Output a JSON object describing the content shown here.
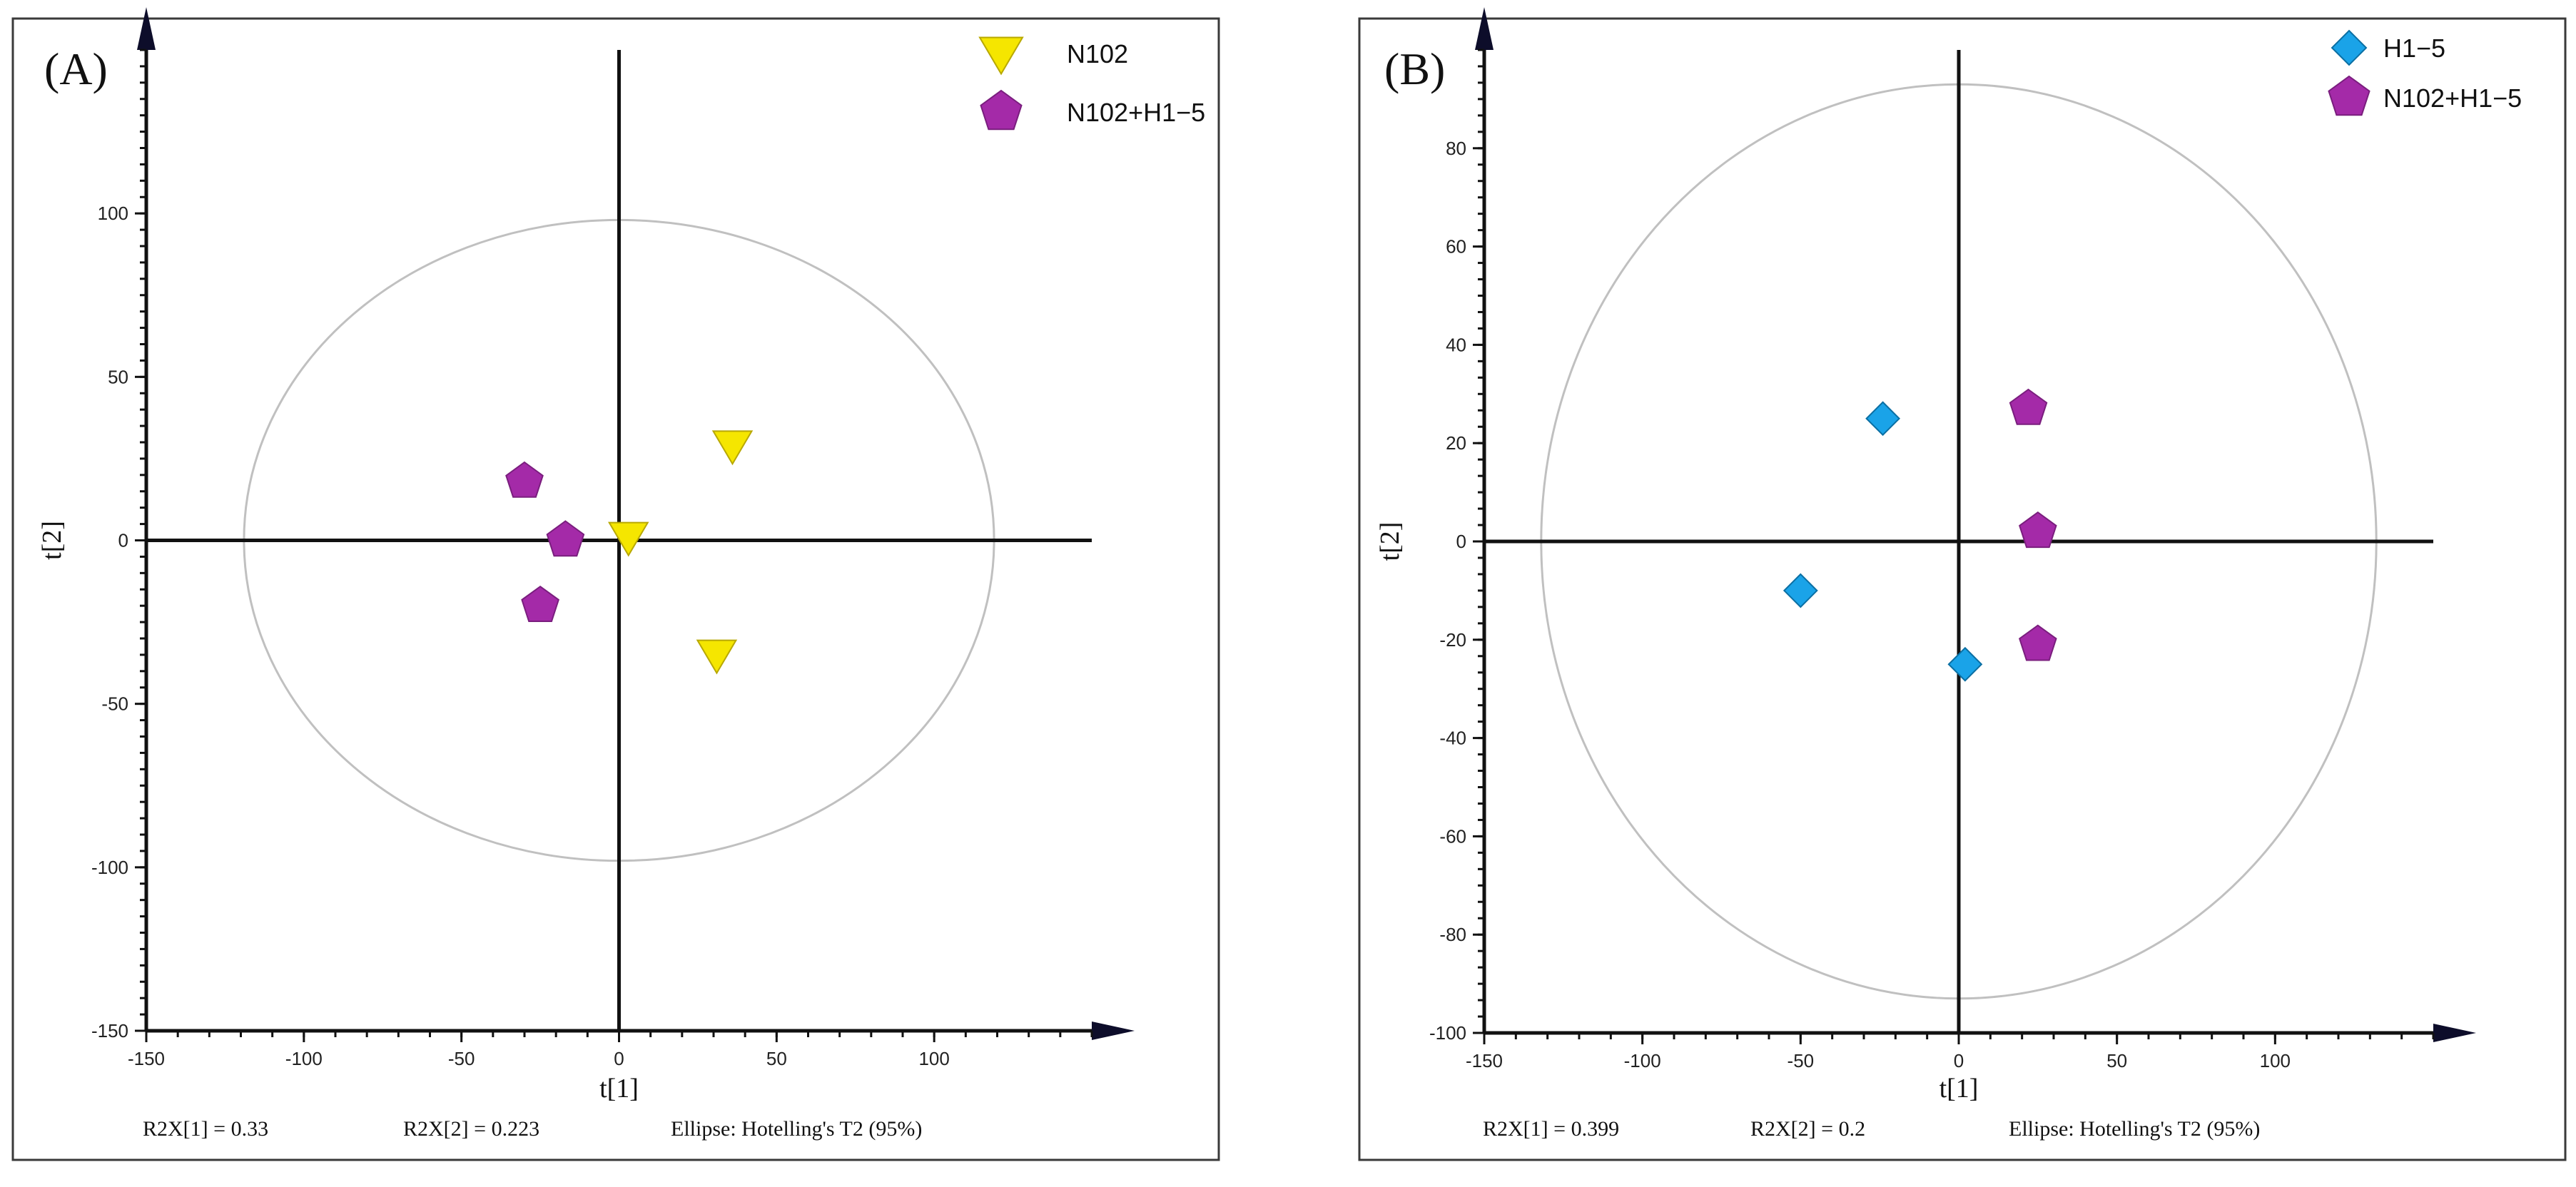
{
  "chart_data": [
    {
      "type": "scatter",
      "panel_label": "(A)",
      "xlabel": "t[1]",
      "ylabel": "t[2]",
      "xlim": [
        -150,
        150
      ],
      "ylim": [
        -150,
        150
      ],
      "x_ticks": [
        -150,
        -100,
        -50,
        0,
        50,
        100
      ],
      "x_tick_labels": [
        "-150",
        "-100",
        "-50",
        "0",
        "50",
        "100"
      ],
      "y_ticks": [
        -150,
        -100,
        -50,
        0,
        50,
        100
      ],
      "y_tick_labels": [
        "-150",
        "-100",
        "-50",
        "0",
        "50",
        "100"
      ],
      "ellipse": {
        "rx": 119,
        "ry": 98
      },
      "series": [
        {
          "name": "N102",
          "marker": "triangle-down",
          "color": "#f5e600",
          "stroke": "#b8a800",
          "points": [
            {
              "x": 36,
              "y": 29
            },
            {
              "x": 3,
              "y": 1
            },
            {
              "x": 31,
              "y": -35
            }
          ]
        },
        {
          "name": "N102+H1−5",
          "marker": "pentagon",
          "color": "#a42aa8",
          "stroke": "#7a1e7e",
          "points": [
            {
              "x": -30,
              "y": 18
            },
            {
              "x": -17,
              "y": 0
            },
            {
              "x": -25,
              "y": -20
            }
          ]
        }
      ],
      "footer": {
        "r2x1": "R2X[1] = 0.33",
        "r2x2": "R2X[2] = 0.223",
        "ellipse_label": "Ellipse: Hotelling's T2 (95%)"
      }
    },
    {
      "type": "scatter",
      "panel_label": "(B)",
      "xlabel": "t[1]",
      "ylabel": "t[2]",
      "xlim": [
        -150,
        150
      ],
      "ylim": [
        -100,
        100
      ],
      "x_ticks": [
        -150,
        -100,
        -50,
        0,
        50,
        100
      ],
      "x_tick_labels": [
        "-150",
        "-100",
        "-50",
        "0",
        "50",
        "100"
      ],
      "y_ticks": [
        -100,
        -80,
        -60,
        -40,
        -20,
        0,
        20,
        40,
        60,
        80
      ],
      "y_tick_labels": [
        "-100",
        "-80",
        "-60",
        "-40",
        "-20",
        "0",
        "20",
        "40",
        "60",
        "80"
      ],
      "ellipse": {
        "rx": 132,
        "ry": 93
      },
      "series": [
        {
          "name": "H1−5",
          "marker": "diamond",
          "color": "#1aa3e8",
          "stroke": "#0b6fa3",
          "points": [
            {
              "x": -24,
              "y": 25
            },
            {
              "x": -50,
              "y": -10
            },
            {
              "x": 2,
              "y": -25
            }
          ]
        },
        {
          "name": "N102+H1−5",
          "marker": "pentagon",
          "color": "#a42aa8",
          "stroke": "#7a1e7e",
          "points": [
            {
              "x": 22,
              "y": 27
            },
            {
              "x": 25,
              "y": 2
            },
            {
              "x": 25,
              "y": -21
            }
          ]
        }
      ],
      "footer": {
        "r2x1": "R2X[1] = 0.399",
        "r2x2": "R2X[2] = 0.2",
        "ellipse_label": "Ellipse: Hotelling's T2 (95%)"
      }
    }
  ]
}
